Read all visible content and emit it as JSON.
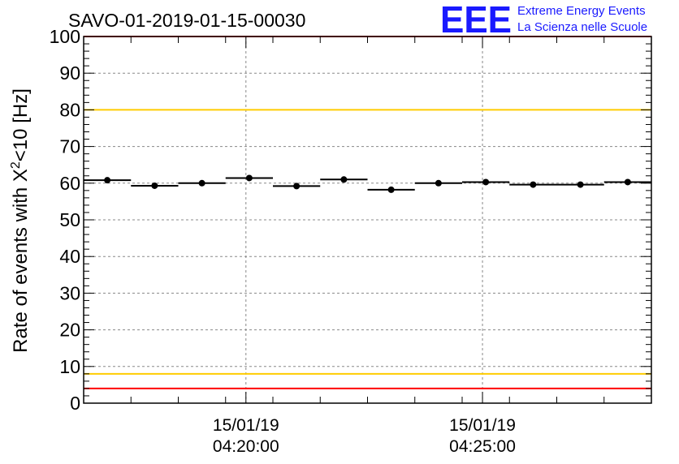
{
  "header": {
    "run_title": "SAVO-01-2019-01-15-00030",
    "logo_text": "EEE",
    "logo_line1": "Extreme Energy Events",
    "logo_line2": "La Scienza nelle Scuole"
  },
  "colors": {
    "logo_blue": "#1a1aff",
    "red_line": "#ff0000",
    "yellow_line": "#ffcc00",
    "marker": "#000000",
    "grid": "#888888"
  },
  "chart_data": {
    "type": "scatter",
    "title": "SAVO-01-2019-01-15-00030",
    "ylabel_main": "Rate of events with X",
    "ylabel_sup": "2",
    "ylabel_tail": "<10 [Hz]",
    "ylim": [
      0,
      100
    ],
    "y_ticks": [
      0,
      10,
      20,
      30,
      40,
      50,
      60,
      70,
      80,
      90,
      100
    ],
    "y_tick_labels": [
      "0",
      "10",
      "20",
      "30",
      "40",
      "50",
      "60",
      "70",
      "80",
      "90",
      "100"
    ],
    "x_unit": "minutes after 04:16:00",
    "xlim": [
      0,
      12
    ],
    "x_ticks": [
      {
        "x": 3.43,
        "date": "15/01/19",
        "time": "04:20:00"
      },
      {
        "x": 8.43,
        "date": "15/01/19",
        "time": "04:25:00"
      }
    ],
    "x_minor_step": 1,
    "bin_half_width": 0.5,
    "grid": true,
    "series": [
      {
        "x": [
          0.5,
          1.5,
          2.5,
          3.5,
          4.5,
          5.5,
          6.5,
          7.5,
          8.5,
          9.5,
          10.5,
          11.5
        ],
        "y": [
          60.8,
          59.3,
          60.0,
          61.4,
          59.2,
          61.0,
          58.2,
          60.0,
          60.3,
          59.6,
          59.6,
          60.3
        ]
      }
    ],
    "reference_lines": [
      {
        "y": 100,
        "color": "#ff0000"
      },
      {
        "y": 80,
        "color": "#ffcc00"
      },
      {
        "y": 8,
        "color": "#ffcc00"
      },
      {
        "y": 4,
        "color": "#ff0000"
      }
    ]
  }
}
